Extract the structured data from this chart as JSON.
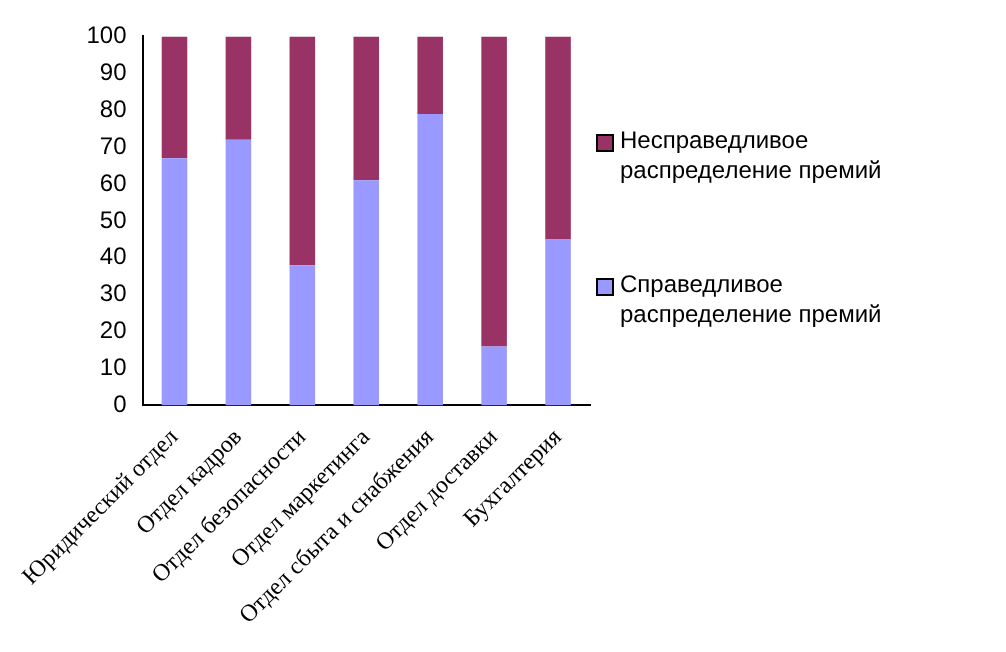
{
  "chart_data": {
    "type": "bar",
    "stacked": true,
    "categories": [
      "Юридический отдел",
      "Отдел кадров",
      "Отдел безопасности",
      "Отдел маркетинга",
      "Отдел сбыта и снабжения",
      "Отдел доставки",
      "Бухгалтерия"
    ],
    "series": [
      {
        "name": "Справедливое распределение премий",
        "color": "#9999ff",
        "values": [
          67,
          72,
          38,
          61,
          79,
          16,
          45
        ]
      },
      {
        "name": "Несправедливое распределение премий",
        "color": "#993366",
        "values": [
          33,
          28,
          62,
          39,
          21,
          84,
          55
        ]
      }
    ],
    "ylim": [
      0,
      100
    ],
    "yticks": [
      0,
      10,
      20,
      30,
      40,
      50,
      60,
      70,
      80,
      90,
      100
    ],
    "grid": false,
    "legend": "right"
  }
}
